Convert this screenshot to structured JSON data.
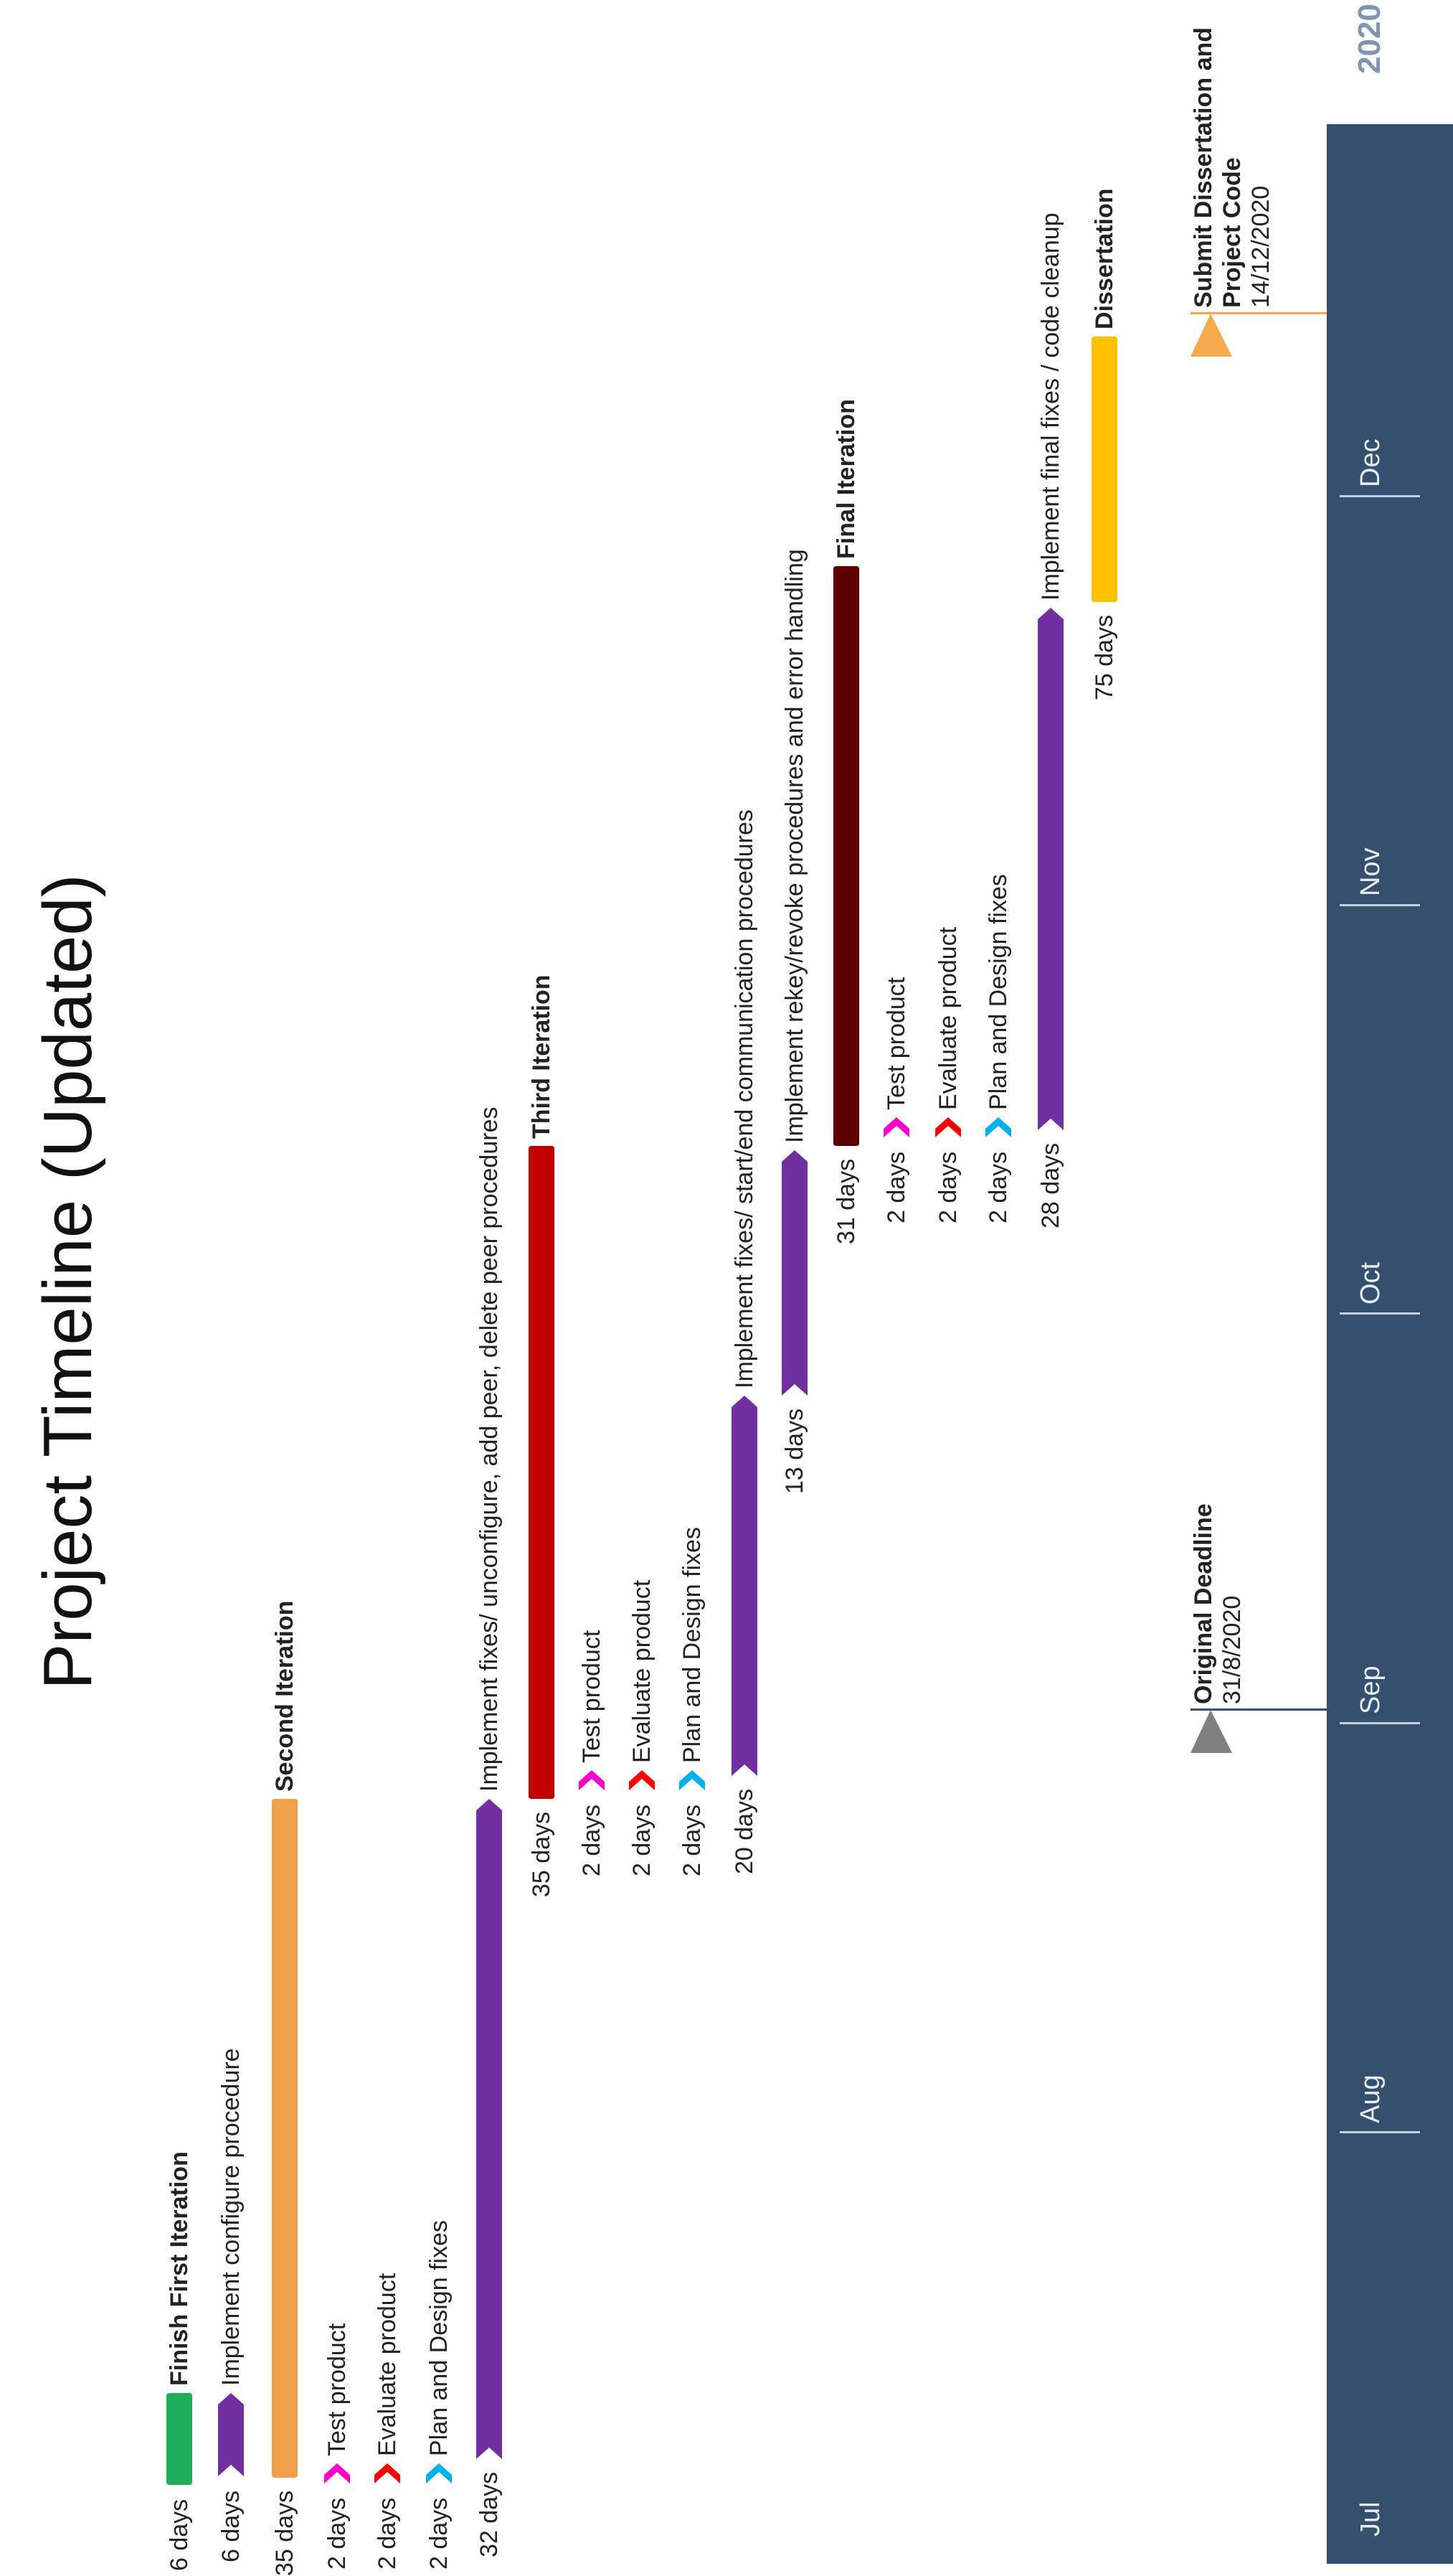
{
  "title": "Project Timeline (Updated)",
  "year": "2020",
  "months": [
    "Jul",
    "Aug",
    "Sep",
    "Oct",
    "Nov",
    "Dec"
  ],
  "colors": {
    "band": "#34506e",
    "green": "#1fae5a",
    "purple": "#7030a0",
    "orange": "#f0a04b",
    "red": "#c00000",
    "darkred": "#5c0000",
    "yellow": "#ffc000",
    "magenta": "#ff00cc",
    "redArrow": "#ff0000",
    "cyan": "#00b0f0",
    "gray": "#808080",
    "milestoneOrange": "#f4a94a"
  },
  "tasks": [
    {
      "label": "Finish First Iteration",
      "duration": "6 days",
      "bold": true,
      "color": "green",
      "shape": "bar"
    },
    {
      "label": "Implement configure procedure",
      "duration": "6 days",
      "bold": false,
      "color": "purple",
      "shape": "chevron"
    },
    {
      "label": "Second Iteration",
      "duration": "35 days",
      "bold": true,
      "color": "orange",
      "shape": "bar"
    },
    {
      "label": "Test product",
      "duration": "2 days",
      "bold": false,
      "color": "magenta",
      "shape": "chevron"
    },
    {
      "label": "Evaluate product",
      "duration": "2 days",
      "bold": false,
      "color": "redArrow",
      "shape": "chevron"
    },
    {
      "label": "Plan and Design fixes",
      "duration": "2 days",
      "bold": false,
      "color": "cyan",
      "shape": "chevron"
    },
    {
      "label": "Implement fixes/ unconfigure, add peer, delete peer procedures",
      "duration": "32 days",
      "bold": false,
      "color": "purple",
      "shape": "chevron"
    },
    {
      "label": "Third Iteration",
      "duration": "35 days",
      "bold": true,
      "color": "red",
      "shape": "bar"
    },
    {
      "label": "Test product",
      "duration": "2 days",
      "bold": false,
      "color": "magenta",
      "shape": "chevron"
    },
    {
      "label": "Evaluate product",
      "duration": "2 days",
      "bold": false,
      "color": "redArrow",
      "shape": "chevron"
    },
    {
      "label": "Plan and Design fixes",
      "duration": "2 days",
      "bold": false,
      "color": "cyan",
      "shape": "chevron"
    },
    {
      "label": "Implement fixes/ start/end communication procedures",
      "duration": "20 days",
      "bold": false,
      "color": "purple",
      "shape": "chevron"
    },
    {
      "label": "Implement rekey/revoke procedures and error handling",
      "duration": "13 days",
      "bold": false,
      "color": "purple",
      "shape": "chevron"
    },
    {
      "label": "Final Iteration",
      "duration": "31 days",
      "bold": true,
      "color": "darkred",
      "shape": "bar"
    },
    {
      "label": "Test product",
      "duration": "2 days",
      "bold": false,
      "color": "magenta",
      "shape": "chevron"
    },
    {
      "label": "Evaluate product",
      "duration": "2 days",
      "bold": false,
      "color": "redArrow",
      "shape": "chevron"
    },
    {
      "label": "Plan and Design fixes",
      "duration": "2 days",
      "bold": false,
      "color": "cyan",
      "shape": "chevron"
    },
    {
      "label": "Implement final fixes / code cleanup",
      "duration": "28 days",
      "bold": false,
      "color": "purple",
      "shape": "chevron"
    },
    {
      "label": "Dissertation",
      "duration": "75 days",
      "bold": true,
      "color": "yellow",
      "shape": "bar"
    }
  ],
  "milestones": [
    {
      "name": "Original Deadline",
      "date": "31/8/2020",
      "color": "gray"
    },
    {
      "name": "Submit Dissertation and Project Code",
      "date": "14/12/2020",
      "color": "milestoneOrange"
    }
  ]
}
